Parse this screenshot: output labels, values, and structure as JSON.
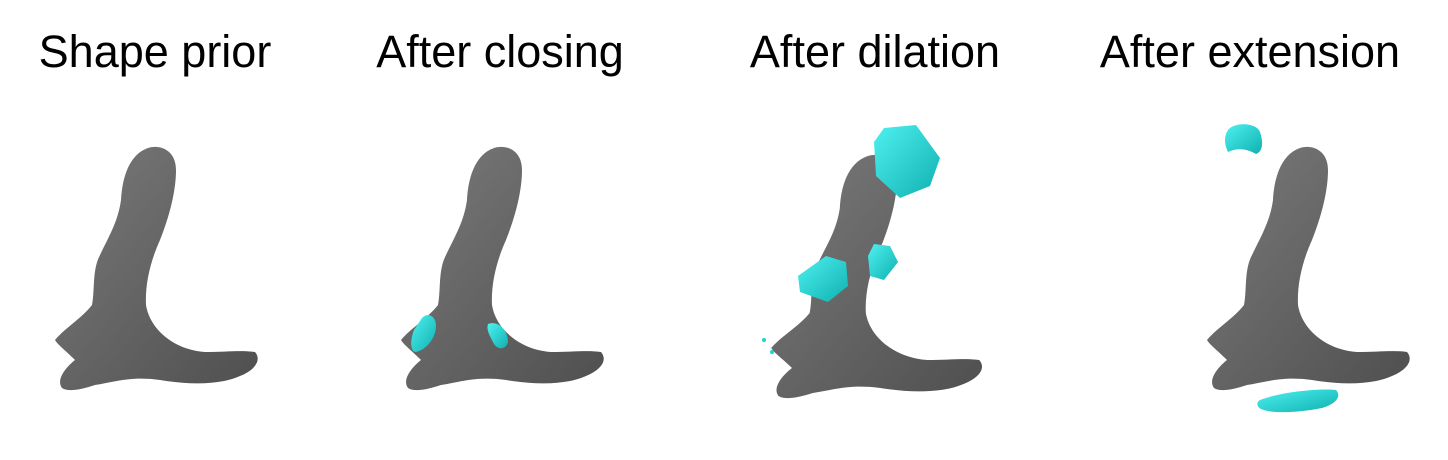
{
  "panels": [
    {
      "title": "Shape prior"
    },
    {
      "title": "After closing"
    },
    {
      "title": "After dilation"
    },
    {
      "title": "After extension"
    }
  ],
  "colors": {
    "shape": "#6b6b6b",
    "shape_dark": "#555555",
    "highlight": "#18d4d4",
    "highlight_dark": "#0fa9a9"
  }
}
